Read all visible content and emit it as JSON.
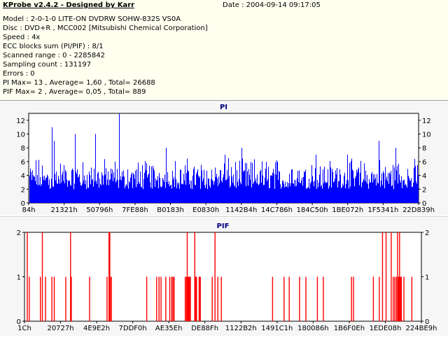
{
  "header": {
    "title": "KProbe v2.4.2 - Designed by Karr",
    "date": "Date : 2004-09-14 09:17:05"
  },
  "info_lines": [
    "Model : 2-0-1-0 LITE-ON DVDRW SOHW-832S  VS0A",
    "Disc : DVD+R , MCC002 [Mitsubishi Chemical Corporation]",
    "Speed : 4x",
    "ECC blocks sum (PI/PIF) : 8/1",
    "Scanned range : 0 - 2285842",
    "Sampling count : 131197",
    "Errors : 0",
    "PI Max= 13 , Average= 1,60 , Total= 26688",
    "PIF Max= 2 , Average= 0,05 , Total= 889"
  ],
  "colors": {
    "pi": "#0000ff",
    "pif": "#ff0000",
    "title": "#000080",
    "panel": "#f6f6f6",
    "info_bg": "#fffff0"
  },
  "chart_data": [
    {
      "type": "bar",
      "title": "PI",
      "ylim": [
        0,
        13
      ],
      "yticks": [
        0,
        2,
        4,
        6,
        8,
        10,
        12
      ],
      "xticks": [
        "84h",
        "21321h",
        "50796h",
        "7FE88h",
        "B0183h",
        "E0830h",
        "1142B4h",
        "14C786h",
        "184C50h",
        "1BE072h",
        "1F5341h",
        "22D839h"
      ],
      "grid": false,
      "max": 13,
      "average": 1.6,
      "spikes": [
        [
          33,
          11
        ],
        [
          36,
          9
        ],
        [
          66,
          10
        ],
        [
          95,
          10
        ],
        [
          129,
          13
        ],
        [
          196,
          8
        ],
        [
          304,
          8
        ],
        [
          500,
          9
        ],
        [
          524,
          8
        ],
        [
          280,
          7
        ],
        [
          410,
          7
        ],
        [
          455,
          7
        ]
      ]
    },
    {
      "type": "bar",
      "title": "PIF",
      "ylim": [
        0,
        2
      ],
      "yticks": [
        0,
        1,
        2
      ],
      "xticks": [
        "1Ch",
        "20727h",
        "4E9E2h",
        "7DDF0h",
        "AE35Eh",
        "DE88Fh",
        "1122B2h",
        "1491C1h",
        "180086h",
        "1B6F0Eh",
        "1EDE08h",
        "224BE9h"
      ],
      "grid": false,
      "max": 2,
      "average": 0.05,
      "values_x_pct_of_range": {
        "level2": [
          0.7,
          4.5,
          11.6,
          21.3,
          21.5,
          41.0,
          42.9,
          48.0,
          90.2,
          91.1,
          92.4,
          94.0,
          94.5
        ],
        "level1": [
          1.2,
          4.0,
          5.3,
          6.9,
          7.5,
          10.4,
          11.8,
          16.4,
          20.8,
          21.9,
          30.8,
          33.3,
          33.9,
          34.4,
          35.6,
          36.6,
          37.1,
          37.4,
          37.7,
          40.5,
          40.8,
          41.4,
          41.8,
          47.3,
          48.7,
          49.6,
          62.5,
          65.4,
          66.7,
          69.3,
          70.9,
          73.8,
          75.3,
          82.4,
          82.9,
          87.9,
          89.4,
          92.9,
          93.3,
          93.7,
          94.2,
          94.8,
          95.6,
          97.6
        ]
      }
    }
  ]
}
